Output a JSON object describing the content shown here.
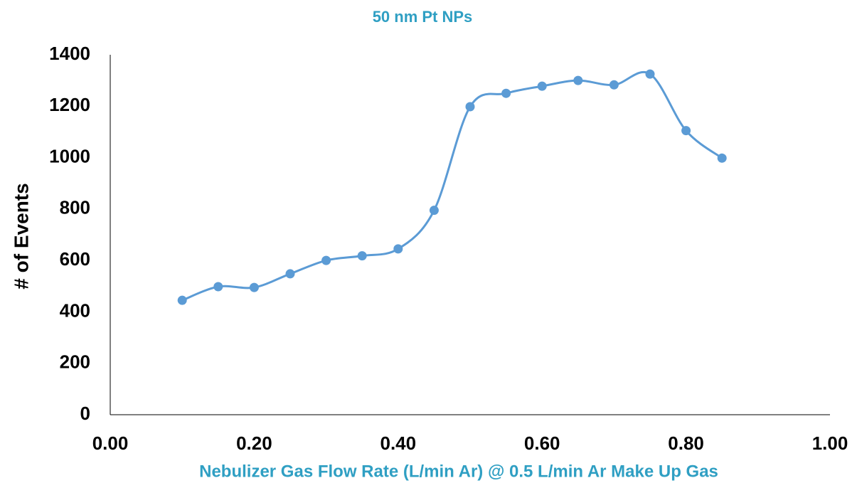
{
  "chart_data": {
    "type": "line",
    "title": "50 nm Pt NPs",
    "x_label": "Nebulizer Gas Flow Rate (L/min Ar) @ 0.5 L/min Ar Make Up Gas",
    "y_label": "# of Events",
    "smooth": true,
    "markers": true,
    "grid": false,
    "title_color": "#2f9fc3",
    "series": [
      {
        "name": "50 nm Pt NPs",
        "color": "#5b9bd5",
        "x": [
          0.1,
          0.15,
          0.2,
          0.25,
          0.3,
          0.35,
          0.4,
          0.45,
          0.5,
          0.55,
          0.6,
          0.65,
          0.7,
          0.75,
          0.8,
          0.85
        ],
        "values": [
          445,
          498,
          495,
          548,
          600,
          618,
          645,
          795,
          1198,
          1250,
          1278,
          1300,
          1283,
          1325,
          1105,
          998
        ]
      }
    ],
    "xlim": [
      0,
      1
    ],
    "xticks": [
      {
        "value": 0,
        "label": "0.00"
      },
      {
        "value": 0.2,
        "label": "0.20"
      },
      {
        "value": 0.4,
        "label": "0.40"
      },
      {
        "value": 0.6,
        "label": "0.60"
      },
      {
        "value": 0.8,
        "label": "0.80"
      },
      {
        "value": 1,
        "label": "1.00"
      }
    ],
    "ylim": [
      0,
      1400
    ],
    "yticks": [
      0,
      200,
      400,
      600,
      800,
      1000,
      1200,
      1400
    ]
  }
}
